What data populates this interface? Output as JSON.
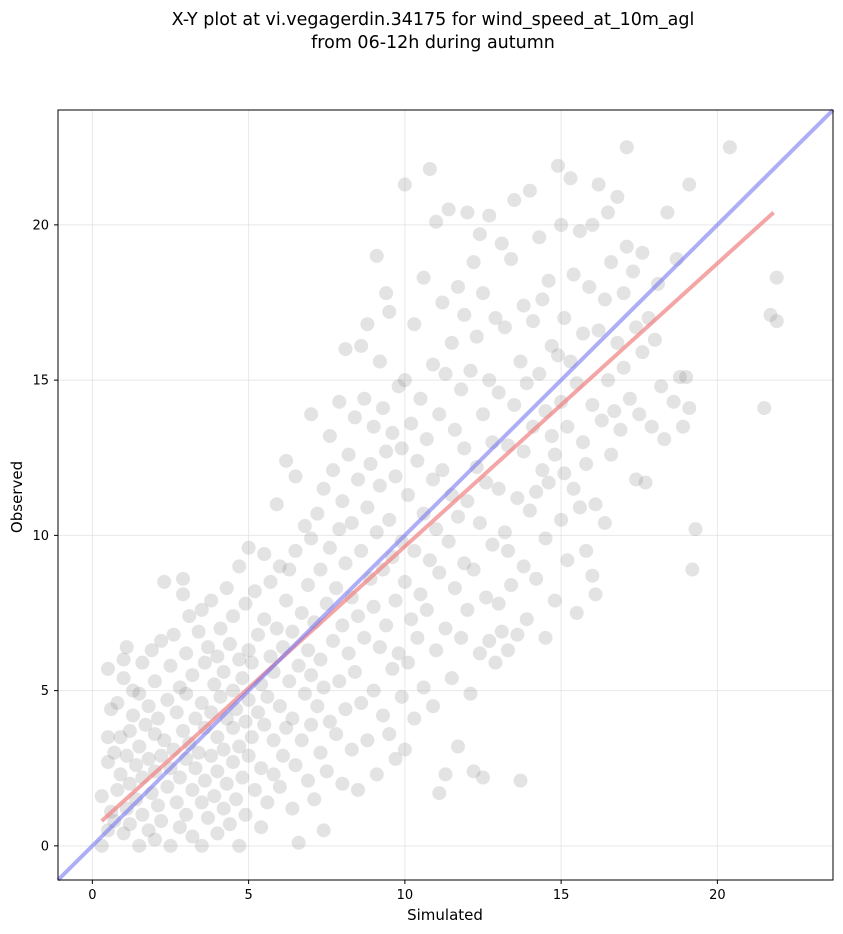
{
  "chart_data": {
    "type": "scatter",
    "title_lines": [
      "X-Y plot at vi.vegagerdin.34175 for wind_speed_at_10m_agl",
      "from 06-12h during autumn"
    ],
    "xlabel": "Simulated",
    "ylabel": "Observed",
    "xlim": [
      -1.1,
      23.7
    ],
    "ylim": [
      -1.1,
      23.7
    ],
    "xticks": [
      0,
      5,
      10,
      15,
      20
    ],
    "yticks": [
      0,
      5,
      10,
      15,
      20
    ],
    "grid": true,
    "point_color": "#808080",
    "point_opacity": 0.22,
    "identity_line": {
      "color": "#7878f0",
      "opacity": 0.6,
      "from": [
        -1.1,
        -1.1
      ],
      "to": [
        23.7,
        23.7
      ]
    },
    "regression_line": {
      "color": "#f08080",
      "opacity": 0.7,
      "from": [
        0.3,
        0.8
      ],
      "to": [
        21.8,
        20.4
      ]
    },
    "points": [
      [
        0.3,
        0.0
      ],
      [
        0.3,
        1.6
      ],
      [
        0.5,
        0.5
      ],
      [
        0.5,
        2.7
      ],
      [
        0.5,
        3.5
      ],
      [
        0.5,
        5.7
      ],
      [
        0.6,
        1.1
      ],
      [
        0.6,
        4.4
      ],
      [
        0.7,
        0.8
      ],
      [
        0.7,
        3.0
      ],
      [
        0.8,
        1.8
      ],
      [
        0.8,
        4.6
      ],
      [
        0.9,
        2.3
      ],
      [
        0.9,
        3.5
      ],
      [
        1.0,
        0.4
      ],
      [
        1.0,
        5.4
      ],
      [
        1.0,
        6.0
      ],
      [
        1.1,
        1.2
      ],
      [
        1.1,
        2.9
      ],
      [
        1.1,
        6.4
      ],
      [
        1.2,
        0.7
      ],
      [
        1.2,
        2.0
      ],
      [
        1.2,
        3.7
      ],
      [
        1.3,
        4.2
      ],
      [
        1.3,
        5.0
      ],
      [
        1.4,
        1.5
      ],
      [
        1.4,
        2.6
      ],
      [
        1.5,
        0.0
      ],
      [
        1.5,
        3.2
      ],
      [
        1.5,
        4.9
      ],
      [
        1.6,
        1.0
      ],
      [
        1.6,
        2.2
      ],
      [
        1.6,
        5.9
      ],
      [
        1.7,
        3.9
      ],
      [
        1.8,
        0.5
      ],
      [
        1.8,
        2.8
      ],
      [
        1.8,
        4.5
      ],
      [
        1.9,
        1.7
      ],
      [
        1.9,
        6.3
      ],
      [
        2.0,
        0.2
      ],
      [
        2.0,
        2.4
      ],
      [
        2.0,
        3.6
      ],
      [
        2.0,
        5.3
      ],
      [
        2.1,
        1.3
      ],
      [
        2.1,
        4.1
      ],
      [
        2.2,
        0.8
      ],
      [
        2.2,
        2.9
      ],
      [
        2.2,
        6.6
      ],
      [
        2.3,
        3.4
      ],
      [
        2.3,
        8.5
      ],
      [
        2.4,
        1.9
      ],
      [
        2.4,
        4.7
      ],
      [
        2.5,
        0.0
      ],
      [
        2.5,
        2.5
      ],
      [
        2.5,
        5.8
      ],
      [
        2.6,
        3.1
      ],
      [
        2.6,
        6.8
      ],
      [
        2.7,
        1.4
      ],
      [
        2.7,
        4.3
      ],
      [
        2.8,
        0.6
      ],
      [
        2.8,
        2.2
      ],
      [
        2.8,
        5.1
      ],
      [
        2.9,
        3.7
      ],
      [
        2.9,
        8.6
      ],
      [
        2.9,
        8.1
      ],
      [
        3.0,
        1.0
      ],
      [
        3.0,
        2.8
      ],
      [
        3.0,
        4.9
      ],
      [
        3.0,
        6.2
      ],
      [
        3.1,
        3.3
      ],
      [
        3.1,
        7.4
      ],
      [
        3.2,
        0.3
      ],
      [
        3.2,
        1.8
      ],
      [
        3.2,
        5.5
      ],
      [
        3.3,
        2.5
      ],
      [
        3.3,
        4.1
      ],
      [
        3.4,
        6.9
      ],
      [
        3.4,
        3.0
      ],
      [
        3.5,
        0.0
      ],
      [
        3.5,
        1.4
      ],
      [
        3.5,
        4.6
      ],
      [
        3.5,
        7.6
      ],
      [
        3.6,
        2.1
      ],
      [
        3.6,
        3.8
      ],
      [
        3.6,
        5.9
      ],
      [
        3.7,
        0.9
      ],
      [
        3.7,
        6.4
      ],
      [
        3.8,
        2.9
      ],
      [
        3.8,
        4.3
      ],
      [
        3.8,
        7.9
      ],
      [
        3.9,
        1.6
      ],
      [
        3.9,
        5.2
      ],
      [
        4.0,
        0.4
      ],
      [
        4.0,
        2.4
      ],
      [
        4.0,
        3.5
      ],
      [
        4.0,
        6.1
      ],
      [
        4.1,
        4.8
      ],
      [
        4.1,
        7.0
      ],
      [
        4.2,
        1.2
      ],
      [
        4.2,
        3.1
      ],
      [
        4.2,
        5.6
      ],
      [
        4.3,
        2.0
      ],
      [
        4.3,
        4.1
      ],
      [
        4.3,
        8.3
      ],
      [
        4.4,
        0.7
      ],
      [
        4.4,
        6.5
      ],
      [
        4.5,
        2.7
      ],
      [
        4.5,
        3.8
      ],
      [
        4.5,
        5.0
      ],
      [
        4.5,
        7.4
      ],
      [
        4.6,
        1.5
      ],
      [
        4.6,
        4.4
      ],
      [
        4.7,
        0.0
      ],
      [
        4.7,
        3.2
      ],
      [
        4.7,
        6.0
      ],
      [
        4.7,
        9.0
      ],
      [
        4.8,
        2.2
      ],
      [
        4.8,
        5.4
      ],
      [
        4.9,
        1.0
      ],
      [
        4.9,
        4.0
      ],
      [
        4.9,
        7.8
      ],
      [
        5.0,
        2.9
      ],
      [
        5.0,
        4.7
      ],
      [
        5.0,
        6.3
      ],
      [
        5.0,
        9.6
      ],
      [
        5.1,
        3.5
      ],
      [
        5.1,
        5.9
      ],
      [
        5.2,
        1.8
      ],
      [
        5.2,
        8.2
      ],
      [
        5.3,
        4.3
      ],
      [
        5.3,
        6.8
      ],
      [
        5.4,
        0.6
      ],
      [
        5.4,
        2.5
      ],
      [
        5.4,
        5.2
      ],
      [
        5.5,
        3.9
      ],
      [
        5.5,
        7.3
      ],
      [
        5.5,
        9.4
      ],
      [
        5.6,
        1.4
      ],
      [
        5.6,
        4.8
      ],
      [
        5.7,
        6.1
      ],
      [
        5.7,
        8.5
      ],
      [
        5.8,
        2.3
      ],
      [
        5.8,
        3.4
      ],
      [
        5.8,
        5.6
      ],
      [
        5.9,
        7.0
      ],
      [
        5.9,
        11.0
      ],
      [
        6.0,
        1.9
      ],
      [
        6.0,
        4.5
      ],
      [
        6.0,
        9.0
      ],
      [
        6.1,
        2.9
      ],
      [
        6.1,
        6.4
      ],
      [
        6.2,
        3.8
      ],
      [
        6.2,
        7.9
      ],
      [
        6.2,
        12.4
      ],
      [
        6.3,
        5.3
      ],
      [
        6.3,
        8.9
      ],
      [
        6.4,
        1.2
      ],
      [
        6.4,
        4.1
      ],
      [
        6.4,
        6.9
      ],
      [
        6.5,
        2.6
      ],
      [
        6.5,
        9.5
      ],
      [
        6.5,
        11.9
      ],
      [
        6.6,
        5.8
      ],
      [
        6.6,
        0.1
      ],
      [
        6.7,
        3.4
      ],
      [
        6.7,
        7.5
      ],
      [
        6.8,
        4.9
      ],
      [
        6.8,
        10.3
      ],
      [
        6.9,
        2.1
      ],
      [
        6.9,
        6.3
      ],
      [
        6.9,
        8.4
      ],
      [
        7.0,
        3.9
      ],
      [
        7.0,
        5.5
      ],
      [
        7.0,
        9.9
      ],
      [
        7.0,
        13.9
      ],
      [
        7.1,
        1.5
      ],
      [
        7.1,
        7.2
      ],
      [
        7.2,
        4.5
      ],
      [
        7.2,
        10.7
      ],
      [
        7.3,
        3.0
      ],
      [
        7.3,
        6.0
      ],
      [
        7.3,
        8.9
      ],
      [
        7.4,
        0.5
      ],
      [
        7.4,
        5.1
      ],
      [
        7.4,
        11.5
      ],
      [
        7.5,
        2.4
      ],
      [
        7.5,
        7.8
      ],
      [
        7.6,
        4.0
      ],
      [
        7.6,
        9.6
      ],
      [
        7.6,
        13.2
      ],
      [
        7.7,
        6.6
      ],
      [
        7.7,
        12.1
      ],
      [
        7.8,
        3.6
      ],
      [
        7.8,
        8.3
      ],
      [
        7.9,
        5.3
      ],
      [
        7.9,
        10.2
      ],
      [
        7.9,
        14.3
      ],
      [
        8.0,
        2.0
      ],
      [
        8.0,
        7.1
      ],
      [
        8.0,
        11.1
      ],
      [
        8.1,
        4.4
      ],
      [
        8.1,
        9.1
      ],
      [
        8.1,
        16.0
      ],
      [
        8.2,
        6.2
      ],
      [
        8.2,
        12.6
      ],
      [
        8.3,
        3.1
      ],
      [
        8.3,
        8.0
      ],
      [
        8.3,
        10.4
      ],
      [
        8.4,
        5.6
      ],
      [
        8.4,
        13.8
      ],
      [
        8.5,
        1.8
      ],
      [
        8.5,
        7.4
      ],
      [
        8.5,
        11.8
      ],
      [
        8.6,
        4.6
      ],
      [
        8.6,
        9.5
      ],
      [
        8.6,
        16.1
      ],
      [
        8.7,
        6.7
      ],
      [
        8.7,
        14.4
      ],
      [
        8.8,
        3.4
      ],
      [
        8.8,
        10.9
      ],
      [
        8.8,
        16.8
      ],
      [
        8.9,
        8.6
      ],
      [
        8.9,
        12.3
      ],
      [
        9.0,
        5.0
      ],
      [
        9.0,
        7.7
      ],
      [
        9.0,
        13.5
      ],
      [
        9.1,
        2.3
      ],
      [
        9.1,
        10.1
      ],
      [
        9.1,
        19.0
      ],
      [
        9.2,
        6.4
      ],
      [
        9.2,
        11.6
      ],
      [
        9.2,
        15.6
      ],
      [
        9.3,
        4.2
      ],
      [
        9.3,
        8.9
      ],
      [
        9.3,
        14.1
      ],
      [
        9.4,
        7.1
      ],
      [
        9.4,
        12.7
      ],
      [
        9.4,
        17.8
      ],
      [
        9.5,
        3.6
      ],
      [
        9.5,
        10.5
      ],
      [
        9.5,
        17.2
      ],
      [
        9.6,
        5.7
      ],
      [
        9.6,
        9.3
      ],
      [
        9.6,
        13.3
      ],
      [
        9.7,
        2.8
      ],
      [
        9.7,
        7.9
      ],
      [
        9.7,
        11.9
      ],
      [
        9.8,
        6.2
      ],
      [
        9.8,
        14.8
      ],
      [
        9.9,
        4.8
      ],
      [
        9.9,
        9.8
      ],
      [
        9.9,
        12.8
      ],
      [
        10.0,
        3.1
      ],
      [
        10.0,
        8.5
      ],
      [
        10.0,
        15.0
      ],
      [
        10.0,
        21.3
      ],
      [
        10.1,
        5.9
      ],
      [
        10.1,
        11.3
      ],
      [
        10.2,
        7.3
      ],
      [
        10.2,
        13.6
      ],
      [
        10.3,
        4.1
      ],
      [
        10.3,
        9.5
      ],
      [
        10.3,
        16.8
      ],
      [
        10.4,
        6.7
      ],
      [
        10.4,
        12.4
      ],
      [
        10.5,
        8.1
      ],
      [
        10.5,
        14.4
      ],
      [
        10.6,
        5.1
      ],
      [
        10.6,
        10.7
      ],
      [
        10.6,
        18.3
      ],
      [
        10.7,
        7.6
      ],
      [
        10.7,
        13.1
      ],
      [
        10.8,
        21.8
      ],
      [
        10.8,
        9.2
      ],
      [
        10.9,
        4.5
      ],
      [
        10.9,
        11.8
      ],
      [
        10.9,
        15.5
      ],
      [
        11.0,
        6.3
      ],
      [
        11.0,
        10.2
      ],
      [
        11.0,
        20.1
      ],
      [
        11.1,
        1.7
      ],
      [
        11.1,
        8.8
      ],
      [
        11.1,
        13.9
      ],
      [
        11.2,
        12.1
      ],
      [
        11.2,
        17.5
      ],
      [
        11.3,
        2.3
      ],
      [
        11.3,
        7.0
      ],
      [
        11.3,
        15.2
      ],
      [
        11.4,
        9.8
      ],
      [
        11.4,
        20.5
      ],
      [
        11.5,
        5.4
      ],
      [
        11.5,
        11.3
      ],
      [
        11.5,
        16.2
      ],
      [
        11.6,
        8.3
      ],
      [
        11.6,
        13.4
      ],
      [
        11.7,
        3.2
      ],
      [
        11.7,
        10.6
      ],
      [
        11.7,
        18.0
      ],
      [
        11.8,
        6.7
      ],
      [
        11.8,
        14.7
      ],
      [
        11.9,
        9.1
      ],
      [
        11.9,
        12.8
      ],
      [
        11.9,
        17.1
      ],
      [
        12.0,
        7.6
      ],
      [
        12.0,
        11.1
      ],
      [
        12.0,
        20.4
      ],
      [
        12.1,
        4.9
      ],
      [
        12.1,
        15.3
      ],
      [
        12.2,
        2.4
      ],
      [
        12.2,
        8.9
      ],
      [
        12.2,
        18.8
      ],
      [
        12.3,
        12.2
      ],
      [
        12.3,
        16.4
      ],
      [
        12.4,
        6.2
      ],
      [
        12.4,
        10.4
      ],
      [
        12.4,
        19.7
      ],
      [
        12.5,
        2.2
      ],
      [
        12.5,
        13.9
      ],
      [
        12.5,
        17.8
      ],
      [
        12.6,
        8.0
      ],
      [
        12.6,
        11.7
      ],
      [
        12.7,
        6.6
      ],
      [
        12.7,
        15.0
      ],
      [
        12.7,
        20.3
      ],
      [
        12.8,
        9.7
      ],
      [
        12.8,
        13.0
      ],
      [
        12.9,
        5.9
      ],
      [
        12.9,
        17.0
      ],
      [
        13.0,
        7.8
      ],
      [
        13.0,
        11.5
      ],
      [
        13.0,
        14.6
      ],
      [
        13.1,
        6.9
      ],
      [
        13.1,
        19.4
      ],
      [
        13.2,
        10.1
      ],
      [
        13.2,
        16.7
      ],
      [
        13.3,
        6.3
      ],
      [
        13.3,
        9.5
      ],
      [
        13.3,
        12.9
      ],
      [
        13.4,
        8.4
      ],
      [
        13.4,
        18.9
      ],
      [
        13.5,
        14.2
      ],
      [
        13.5,
        20.8
      ],
      [
        13.6,
        6.8
      ],
      [
        13.6,
        11.2
      ],
      [
        13.7,
        2.1
      ],
      [
        13.7,
        15.6
      ],
      [
        13.8,
        9.0
      ],
      [
        13.8,
        12.7
      ],
      [
        13.8,
        17.4
      ],
      [
        13.9,
        7.3
      ],
      [
        13.9,
        14.9
      ],
      [
        14.0,
        10.8
      ],
      [
        14.0,
        21.1
      ],
      [
        14.1,
        13.5
      ],
      [
        14.1,
        16.9
      ],
      [
        14.2,
        8.6
      ],
      [
        14.2,
        11.4
      ],
      [
        14.3,
        15.2
      ],
      [
        14.3,
        19.6
      ],
      [
        14.4,
        12.1
      ],
      [
        14.4,
        17.6
      ],
      [
        14.5,
        6.7
      ],
      [
        14.5,
        9.9
      ],
      [
        14.5,
        14.0
      ],
      [
        14.6,
        11.7
      ],
      [
        14.6,
        18.2
      ],
      [
        14.7,
        13.2
      ],
      [
        14.7,
        16.1
      ],
      [
        14.8,
        7.9
      ],
      [
        14.8,
        12.6
      ],
      [
        14.9,
        15.8
      ],
      [
        14.9,
        21.9
      ],
      [
        15.0,
        10.5
      ],
      [
        15.0,
        14.3
      ],
      [
        15.0,
        20.0
      ],
      [
        15.1,
        12.0
      ],
      [
        15.1,
        17.0
      ],
      [
        15.2,
        9.2
      ],
      [
        15.2,
        13.5
      ],
      [
        15.3,
        15.6
      ],
      [
        15.3,
        21.5
      ],
      [
        15.4,
        11.5
      ],
      [
        15.4,
        18.4
      ],
      [
        15.5,
        7.5
      ],
      [
        15.5,
        14.9
      ],
      [
        15.6,
        10.9
      ],
      [
        15.6,
        19.8
      ],
      [
        15.7,
        13.0
      ],
      [
        15.7,
        16.5
      ],
      [
        15.8,
        9.5
      ],
      [
        15.8,
        12.3
      ],
      [
        15.9,
        18.0
      ],
      [
        16.0,
        8.7
      ],
      [
        16.0,
        14.2
      ],
      [
        16.0,
        20.0
      ],
      [
        16.1,
        11.0
      ],
      [
        16.1,
        8.1
      ],
      [
        16.2,
        16.6
      ],
      [
        16.2,
        21.3
      ],
      [
        16.3,
        13.7
      ],
      [
        16.4,
        10.4
      ],
      [
        16.4,
        17.6
      ],
      [
        16.5,
        15.0
      ],
      [
        16.5,
        20.4
      ],
      [
        16.6,
        12.6
      ],
      [
        16.6,
        18.8
      ],
      [
        16.7,
        14.0
      ],
      [
        16.8,
        16.2
      ],
      [
        16.8,
        20.9
      ],
      [
        16.9,
        13.4
      ],
      [
        17.0,
        17.8
      ],
      [
        17.0,
        15.4
      ],
      [
        17.1,
        19.3
      ],
      [
        17.1,
        22.5
      ],
      [
        17.2,
        14.4
      ],
      [
        17.3,
        18.5
      ],
      [
        17.4,
        11.8
      ],
      [
        17.4,
        16.7
      ],
      [
        17.5,
        13.9
      ],
      [
        17.6,
        19.1
      ],
      [
        17.6,
        15.9
      ],
      [
        17.7,
        11.7
      ],
      [
        17.8,
        17.0
      ],
      [
        17.9,
        13.5
      ],
      [
        18.0,
        16.3
      ],
      [
        18.1,
        18.1
      ],
      [
        18.2,
        14.8
      ],
      [
        18.3,
        13.1
      ],
      [
        18.4,
        20.4
      ],
      [
        18.6,
        14.3
      ],
      [
        18.7,
        18.9
      ],
      [
        18.8,
        15.1
      ],
      [
        18.9,
        13.5
      ],
      [
        19.0,
        15.1
      ],
      [
        19.1,
        21.3
      ],
      [
        19.1,
        14.1
      ],
      [
        19.3,
        10.2
      ],
      [
        19.2,
        8.9
      ],
      [
        20.4,
        22.5
      ],
      [
        21.5,
        14.1
      ],
      [
        21.7,
        17.1
      ],
      [
        21.9,
        18.3
      ],
      [
        21.9,
        16.9
      ]
    ]
  }
}
